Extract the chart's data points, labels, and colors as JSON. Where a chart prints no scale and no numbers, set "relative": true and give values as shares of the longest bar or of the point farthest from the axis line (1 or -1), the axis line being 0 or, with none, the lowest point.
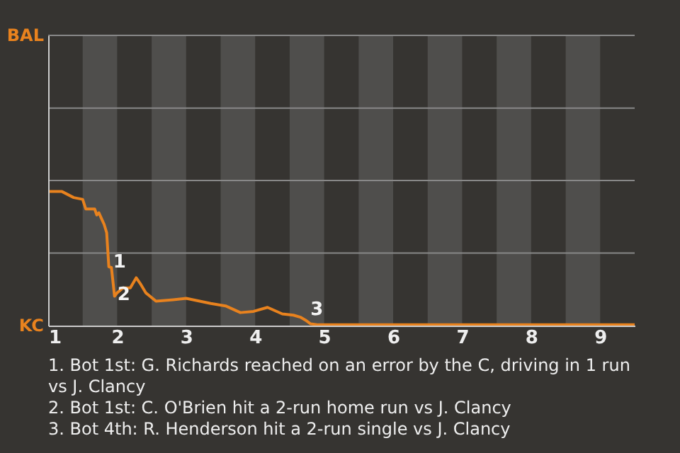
{
  "chart_data": {
    "type": "line",
    "relative": true,
    "x": [
      1.0,
      1.2,
      1.37,
      1.5,
      1.545,
      1.674,
      1.705,
      1.735,
      1.765,
      1.811,
      1.848,
      1.879,
      1.917,
      1.962,
      2.0,
      2.086,
      2.19,
      2.276,
      2.345,
      2.414,
      2.563,
      2.813,
      3.0,
      3.357,
      3.571,
      3.786,
      3.976,
      4.179,
      4.393,
      4.554,
      4.663,
      4.728,
      4.804,
      4.913,
      9.5
    ],
    "series": [
      {
        "color": "#e8821e",
        "values": [
          1.0,
          1.0,
          0.955,
          0.942,
          0.87,
          0.87,
          0.825,
          0.842,
          0.807,
          0.755,
          0.693,
          0.439,
          0.433,
          0.219,
          0.245,
          0.281,
          0.281,
          0.357,
          0.305,
          0.245,
          0.182,
          0.193,
          0.203,
          0.165,
          0.147,
          0.097,
          0.106,
          0.136,
          0.087,
          0.078,
          0.061,
          0.041,
          0.013,
          0.006,
          0.006
        ]
      }
    ],
    "xlim": [
      1,
      9.5
    ],
    "xticks": [
      1,
      2,
      3,
      4,
      5,
      6,
      7,
      8,
      9
    ],
    "ref_lines": [
      {
        "axis": "y",
        "value": 0.541,
        "color": "#888888"
      },
      {
        "axis": "y",
        "value": 1.082,
        "color": "#888888"
      },
      {
        "axis": "y",
        "value": 1.623,
        "color": "#888888"
      },
      {
        "axis": "y",
        "value": 2.165,
        "color": "#888888"
      }
    ],
    "bands": [
      {
        "axis": "x",
        "from": 1.5,
        "to": 2,
        "color": "#4f4e4c"
      },
      {
        "axis": "x",
        "from": 2.5,
        "to": 3,
        "color": "#4f4e4c"
      },
      {
        "axis": "x",
        "from": 3.5,
        "to": 4,
        "color": "#4f4e4c"
      },
      {
        "axis": "x",
        "from": 4.5,
        "to": 5,
        "color": "#4f4e4c"
      },
      {
        "axis": "x",
        "from": 5.5,
        "to": 6,
        "color": "#4f4e4c"
      },
      {
        "axis": "x",
        "from": 6.5,
        "to": 7,
        "color": "#4f4e4c"
      },
      {
        "axis": "x",
        "from": 7.5,
        "to": 8,
        "color": "#4f4e4c"
      },
      {
        "axis": "x",
        "from": 8.5,
        "to": 9,
        "color": "#4f4e4c"
      }
    ],
    "annotations": [
      "BAL",
      "KC",
      {
        "text": "1",
        "x": 1.902,
        "y": 0.558
      },
      {
        "text": "2",
        "x": 1.962,
        "y": 0.316
      },
      {
        "text": "3",
        "x": 4.761,
        "y": 0.029
      },
      "1. Bot 1st: G. Richards reached on an error by the C, driving in 1 run vs J. Clancy",
      "2. Bot 1st: C. O'Brien hit a 2-run home run vs J. Clancy",
      "3. Bot 4th: R. Henderson hit a 2-run single vs J. Clancy"
    ]
  }
}
